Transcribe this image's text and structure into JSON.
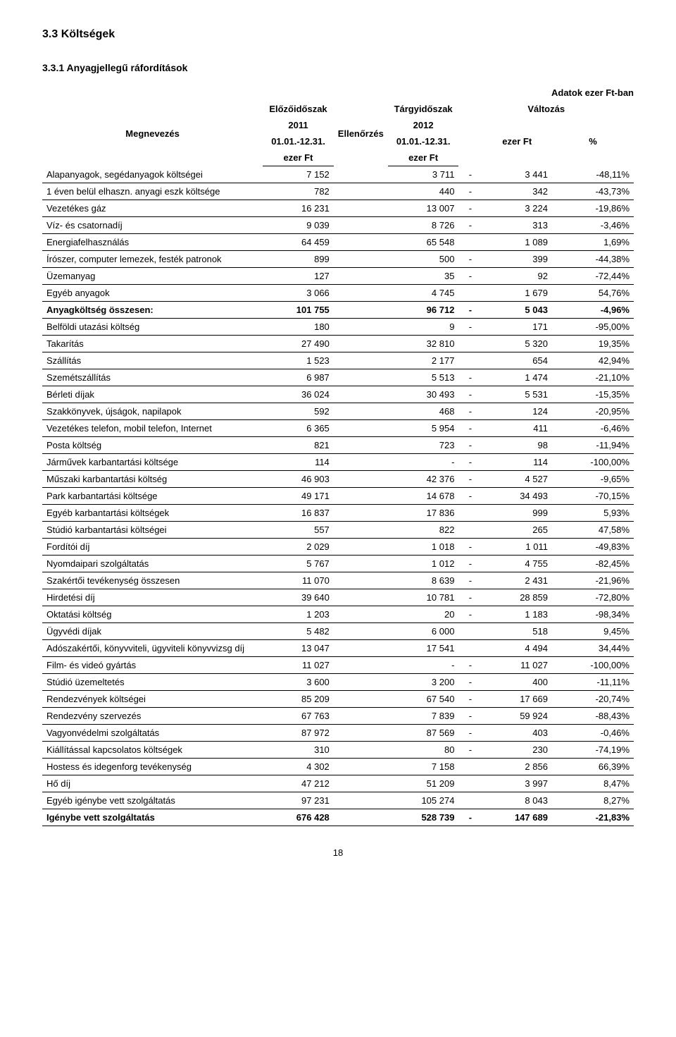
{
  "section_number_title": "3.3  Költségek",
  "subsection_number_title": "3.3.1 Anyagjellegű ráfordítások",
  "caption": "Adatok ezer Ft-ban",
  "page_number": "18",
  "header": {
    "col_label": "Megnevezés",
    "col_prev": "Előzőidőszak",
    "col_check": "Ellenőrzés",
    "col_curr": "Tárgyidőszak",
    "col_change": "Változás",
    "sub_prev_1": "2011",
    "sub_prev_2": "01.01.-12.31.",
    "sub_prev_3": "ezer Ft",
    "sub_curr_1": "2012",
    "sub_curr_2": "01.01.-12.31.",
    "sub_curr_3": "ezer Ft",
    "sub_chg_1": "ezer Ft",
    "sub_chg_2": "%"
  },
  "rows": [
    {
      "label": "Alapanyagok, segédanyagok költségei",
      "v1": "7 152",
      "v2": "3 711",
      "sep": "-",
      "v3": "3 441",
      "v4": "-48,11%",
      "bold": false
    },
    {
      "label": "1 éven belül elhaszn. anyagi eszk költsége",
      "v1": "782",
      "v2": "440",
      "sep": "-",
      "v3": "342",
      "v4": "-43,73%",
      "bold": false
    },
    {
      "label": "Vezetékes gáz",
      "v1": "16 231",
      "v2": "13 007",
      "sep": "-",
      "v3": "3 224",
      "v4": "-19,86%",
      "bold": false
    },
    {
      "label": "Víz- és csatornadíj",
      "v1": "9 039",
      "v2": "8 726",
      "sep": "-",
      "v3": "313",
      "v4": "-3,46%",
      "bold": false
    },
    {
      "label": "Energiafelhasználás",
      "v1": "64 459",
      "v2": "65 548",
      "sep": "",
      "v3": "1 089",
      "v4": "1,69%",
      "bold": false
    },
    {
      "label": "Írószer, computer lemezek, festék patronok",
      "v1": "899",
      "v2": "500",
      "sep": "-",
      "v3": "399",
      "v4": "-44,38%",
      "bold": false
    },
    {
      "label": "Üzemanyag",
      "v1": "127",
      "v2": "35",
      "sep": "-",
      "v3": "92",
      "v4": "-72,44%",
      "bold": false
    },
    {
      "label": "Egyéb anyagok",
      "v1": "3 066",
      "v2": "4 745",
      "sep": "",
      "v3": "1 679",
      "v4": "54,76%",
      "bold": false
    },
    {
      "label": "Anyagköltség összesen:",
      "v1": "101 755",
      "v2": "96 712",
      "sep": "-",
      "v3": "5 043",
      "v4": "-4,96%",
      "bold": true
    },
    {
      "label": "Belföldi utazási költség",
      "v1": "180",
      "v2": "9",
      "sep": "-",
      "v3": "171",
      "v4": "-95,00%",
      "bold": false
    },
    {
      "label": "Takarítás",
      "v1": "27 490",
      "v2": "32 810",
      "sep": "",
      "v3": "5 320",
      "v4": "19,35%",
      "bold": false
    },
    {
      "label": "Szállítás",
      "v1": "1 523",
      "v2": "2 177",
      "sep": "",
      "v3": "654",
      "v4": "42,94%",
      "bold": false
    },
    {
      "label": "Szemétszállítás",
      "v1": "6 987",
      "v2": "5 513",
      "sep": "-",
      "v3": "1 474",
      "v4": "-21,10%",
      "bold": false
    },
    {
      "label": "Bérleti díjak",
      "v1": "36 024",
      "v2": "30 493",
      "sep": "-",
      "v3": "5 531",
      "v4": "-15,35%",
      "bold": false
    },
    {
      "label": "Szakkönyvek, újságok, napilapok",
      "v1": "592",
      "v2": "468",
      "sep": "-",
      "v3": "124",
      "v4": "-20,95%",
      "bold": false
    },
    {
      "label": "Vezetékes telefon, mobil telefon, Internet",
      "v1": "6 365",
      "v2": "5 954",
      "sep": "-",
      "v3": "411",
      "v4": "-6,46%",
      "bold": false
    },
    {
      "label": "Posta költség",
      "v1": "821",
      "v2": "723",
      "sep": "-",
      "v3": "98",
      "v4": "-11,94%",
      "bold": false
    },
    {
      "label": "Járművek karbantartási költsége",
      "v1": "114",
      "v2": "-",
      "sep": "-",
      "v3": "114",
      "v4": "-100,00%",
      "bold": false
    },
    {
      "label": "Műszaki karbantartási  költség",
      "v1": "46 903",
      "v2": "42 376",
      "sep": "-",
      "v3": "4 527",
      "v4": "-9,65%",
      "bold": false
    },
    {
      "label": "Park karbantartási költsége",
      "v1": "49 171",
      "v2": "14 678",
      "sep": "-",
      "v3": "34 493",
      "v4": "-70,15%",
      "bold": false
    },
    {
      "label": "Egyéb karbantartási költségek",
      "v1": "16 837",
      "v2": "17 836",
      "sep": "",
      "v3": "999",
      "v4": "5,93%",
      "bold": false
    },
    {
      "label": "Stúdió karbantartási költségei",
      "v1": "557",
      "v2": "822",
      "sep": "",
      "v3": "265",
      "v4": "47,58%",
      "bold": false
    },
    {
      "label": "Fordítói díj",
      "v1": "2 029",
      "v2": "1 018",
      "sep": "-",
      "v3": "1 011",
      "v4": "-49,83%",
      "bold": false
    },
    {
      "label": "Nyomdaipari szolgáltatás",
      "v1": "5 767",
      "v2": "1 012",
      "sep": "-",
      "v3": "4 755",
      "v4": "-82,45%",
      "bold": false
    },
    {
      "label": "Szakértői tevékenység összesen",
      "v1": "11 070",
      "v2": "8 639",
      "sep": "-",
      "v3": "2 431",
      "v4": "-21,96%",
      "bold": false
    },
    {
      "label": "Hirdetési díj",
      "v1": "39 640",
      "v2": "10 781",
      "sep": "-",
      "v3": "28 859",
      "v4": "-72,80%",
      "bold": false
    },
    {
      "label": "Oktatási költség",
      "v1": "1 203",
      "v2": "20",
      "sep": "-",
      "v3": "1 183",
      "v4": "-98,34%",
      "bold": false
    },
    {
      "label": "Ügyvédi díjak",
      "v1": "5 482",
      "v2": "6 000",
      "sep": "",
      "v3": "518",
      "v4": "9,45%",
      "bold": false
    },
    {
      "label": "Adószakértői, könyvviteli, ügyviteli könyvvizsg díj",
      "v1": "13 047",
      "v2": "17 541",
      "sep": "",
      "v3": "4 494",
      "v4": "34,44%",
      "bold": false
    },
    {
      "label": "Film- és videó gyártás",
      "v1": "11 027",
      "v2": "-",
      "sep": "-",
      "v3": "11 027",
      "v4": "-100,00%",
      "bold": false
    },
    {
      "label": "Stúdió üzemeltetés",
      "v1": "3 600",
      "v2": "3 200",
      "sep": "-",
      "v3": "400",
      "v4": "-11,11%",
      "bold": false
    },
    {
      "label": "Rendezvények költségei",
      "v1": "85 209",
      "v2": "67 540",
      "sep": "-",
      "v3": "17 669",
      "v4": "-20,74%",
      "bold": false
    },
    {
      "label": "Rendezvény szervezés",
      "v1": "67 763",
      "v2": "7 839",
      "sep": "-",
      "v3": "59 924",
      "v4": "-88,43%",
      "bold": false
    },
    {
      "label": "Vagyonvédelmi szolgáltatás",
      "v1": "87 972",
      "v2": "87 569",
      "sep": "-",
      "v3": "403",
      "v4": "-0,46%",
      "bold": false
    },
    {
      "label": "Kiállítással kapcsolatos költségek",
      "v1": "310",
      "v2": "80",
      "sep": "-",
      "v3": "230",
      "v4": "-74,19%",
      "bold": false
    },
    {
      "label": "Hostess és idegenforg tevékenység",
      "v1": "4 302",
      "v2": "7 158",
      "sep": "",
      "v3": "2 856",
      "v4": "66,39%",
      "bold": false
    },
    {
      "label": "Hő díj",
      "v1": "47 212",
      "v2": "51 209",
      "sep": "",
      "v3": "3 997",
      "v4": "8,47%",
      "bold": false
    },
    {
      "label": "Egyéb igénybe vett szolgáltatás",
      "v1": "97 231",
      "v2": "105 274",
      "sep": "",
      "v3": "8 043",
      "v4": "8,27%",
      "bold": false
    },
    {
      "label": "Igénybe vett szolgáltatás",
      "v1": "676 428",
      "v2": "528 739",
      "sep": "-",
      "v3": "147 689",
      "v4": "-21,83%",
      "bold": true
    }
  ]
}
